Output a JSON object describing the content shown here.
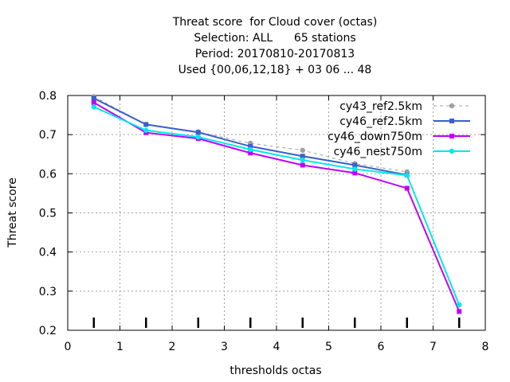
{
  "chart_data": {
    "type": "line",
    "title_lines": [
      "Threat score  for Cloud cover (octas)",
      "Selection: ALL      65 stations",
      "Period: 20170810-20170813",
      "Used {00,06,12,18} + 03 06 ... 48"
    ],
    "xlabel": "thresholds octas",
    "ylabel": "Threat score",
    "xlim": [
      0,
      8
    ],
    "ylim": [
      0.2,
      0.8
    ],
    "x_ticks": [
      "0",
      "1",
      "2",
      "3",
      "4",
      "5",
      "6",
      "7",
      "8"
    ],
    "y_ticks": [
      "0.2",
      "0.3",
      "0.4",
      "0.5",
      "0.6",
      "0.7",
      "0.8"
    ],
    "grid": true,
    "legend_position": "top-right",
    "x": [
      0.5,
      1.5,
      2.5,
      3.5,
      4.5,
      5.5,
      6.5,
      7.5
    ],
    "series": [
      {
        "name": "cy43_ref2.5km",
        "color": "#a0a0a0",
        "dashed": true,
        "marker": "circle",
        "values": [
          0.797,
          0.726,
          0.707,
          0.678,
          0.66,
          0.626,
          0.605,
          null
        ]
      },
      {
        "name": "cy46_ref2.5km",
        "color": "#3a5fcd",
        "dashed": false,
        "marker": "square",
        "values": [
          0.793,
          0.726,
          0.706,
          0.67,
          0.645,
          0.622,
          0.597,
          null
        ]
      },
      {
        "name": "cy46_down750m",
        "color": "#c000ff",
        "dashed": false,
        "marker": "square",
        "values": [
          0.782,
          0.705,
          0.69,
          0.653,
          0.622,
          0.602,
          0.563,
          0.248
        ]
      },
      {
        "name": "cy46_nest750m",
        "color": "#00e8e8",
        "dashed": false,
        "marker": "circle",
        "values": [
          0.771,
          0.711,
          0.694,
          0.662,
          0.635,
          0.612,
          0.596,
          0.265
        ]
      }
    ]
  }
}
